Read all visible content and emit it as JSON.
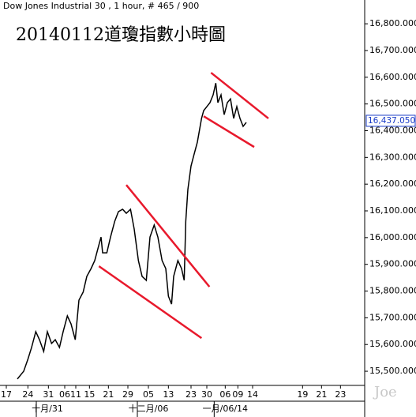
{
  "chart_data": {
    "type": "line",
    "title": "Dow Jones Industrial 30 , 1 hour, # 465 / 900",
    "annotation": "20140112道瓊指數小時圖",
    "watermark": "Joe",
    "series": [
      {
        "name": "Dow Jones Industrial 30",
        "color": "#000000",
        "x": [
          33,
          45,
          53,
          60,
          68,
          75,
          83,
          90,
          98,
          105,
          113,
          120,
          128,
          135,
          143,
          150,
          158,
          165,
          173,
          180,
          188,
          192,
          195,
          203,
          210,
          218,
          225,
          233,
          240,
          248,
          255,
          263,
          270,
          278,
          285,
          293,
          300,
          308,
          315,
          320,
          326,
          330,
          338,
          345,
          350,
          353,
          357,
          363,
          369,
          375,
          383,
          387,
          393,
          399,
          405,
          410,
          414,
          420,
          426,
          432,
          438,
          444,
          450,
          456,
          462,
          468
        ],
        "values": [
          15471,
          15500,
          15545,
          15589,
          15648,
          15618,
          15574,
          15648,
          15604,
          15618,
          15589,
          15648,
          15707,
          15677,
          15618,
          15766,
          15796,
          15855,
          15884,
          15914,
          15973,
          16002,
          15943,
          15943,
          16002,
          16061,
          16097,
          16106,
          16091,
          16106,
          16032,
          15914,
          15855,
          15840,
          16002,
          16047,
          16002,
          15914,
          15884,
          15781,
          15751,
          15855,
          15914,
          15884,
          15840,
          16061,
          16180,
          16268,
          16313,
          16357,
          16446,
          16475,
          16490,
          16505,
          16534,
          16578,
          16505,
          16534,
          16460,
          16505,
          16519,
          16446,
          16490,
          16446,
          16416,
          16431
        ]
      }
    ],
    "last_price": {
      "value": 16437.05,
      "label": "16,437.050"
    },
    "trendlines": [
      {
        "color": "#e8192c",
        "x": [
          401,
          510
        ],
        "y": [
          16617,
          16446
        ]
      },
      {
        "color": "#e8192c",
        "x": [
          387,
          483
        ],
        "y": [
          16454,
          16339
        ]
      },
      {
        "color": "#e8192c",
        "x": [
          240,
          398
        ],
        "y": [
          16197,
          15816
        ]
      },
      {
        "color": "#e8192c",
        "x": [
          188,
          383
        ],
        "y": [
          15893,
          15624
        ]
      }
    ],
    "xlim": [
      0,
      693
    ],
    "xticks": [
      {
        "value": 12,
        "label": "17"
      },
      {
        "value": 53,
        "label": "24"
      },
      {
        "value": 92,
        "label": "31"
      },
      {
        "value": 123,
        "label": "06"
      },
      {
        "value": 144,
        "label": "11"
      },
      {
        "value": 170,
        "label": "15"
      },
      {
        "value": 206,
        "label": "21"
      },
      {
        "value": 243,
        "label": "29"
      },
      {
        "value": 282,
        "label": "05"
      },
      {
        "value": 320,
        "label": "13"
      },
      {
        "value": 363,
        "label": "23"
      },
      {
        "value": 393,
        "label": "30"
      },
      {
        "value": 428,
        "label": "06"
      },
      {
        "value": 452,
        "label": "09"
      },
      {
        "value": 480,
        "label": "14"
      },
      {
        "value": 575,
        "label": "19"
      },
      {
        "value": 611,
        "label": "21"
      },
      {
        "value": 647,
        "label": "23"
      }
    ],
    "month_ticks": [
      {
        "value": 90,
        "label": "十月/31"
      },
      {
        "value": 282,
        "label": "十二月/06"
      },
      {
        "value": 428,
        "label": "一月/06/14"
      }
    ],
    "ylim": [
      15447,
      16889
    ],
    "yticks": [
      {
        "value": 15500,
        "label": "15,500.000"
      },
      {
        "value": 15600,
        "label": "15,600.000"
      },
      {
        "value": 15700,
        "label": "15,700.000"
      },
      {
        "value": 15800,
        "label": "15,800.000"
      },
      {
        "value": 15900,
        "label": "15,900.000"
      },
      {
        "value": 16000,
        "label": "16,000.000"
      },
      {
        "value": 16100,
        "label": "16,100.000"
      },
      {
        "value": 16200,
        "label": "16,200.000"
      },
      {
        "value": 16300,
        "label": "16,300.000"
      },
      {
        "value": 16400,
        "label": "16,400.000"
      },
      {
        "value": 16500,
        "label": "16,500.000"
      },
      {
        "value": 16600,
        "label": "16,600.000"
      },
      {
        "value": 16700,
        "label": "16,700.000"
      },
      {
        "value": 16800,
        "label": "16,800.000"
      }
    ],
    "grid": false
  }
}
